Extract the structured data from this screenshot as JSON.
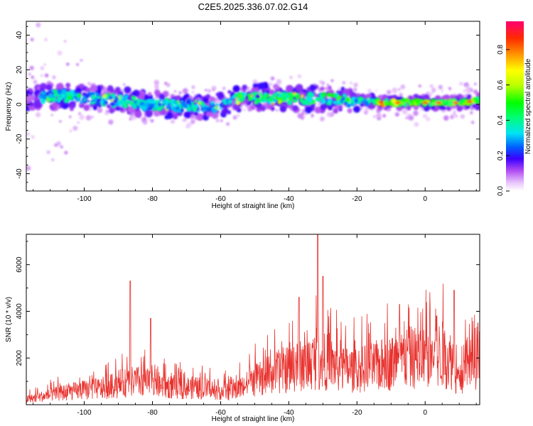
{
  "title": "C2E5.2025.336.07.02.G14",
  "chart_data": [
    {
      "type": "heatmap",
      "xlabel": "Height of straight line (km)",
      "ylabel": "Frequency (Hz)",
      "xlim": [
        -117,
        16
      ],
      "ylim": [
        -50,
        48
      ],
      "xticks": [
        -100,
        -80,
        -60,
        -40,
        -20,
        0
      ],
      "yticks": [
        -40,
        -20,
        0,
        20,
        40
      ],
      "colorbar": {
        "label": "Normalized spectral amplitude",
        "range": [
          0,
          0.96
        ],
        "ticks": [
          0.0,
          0.2,
          0.4,
          0.6,
          0.8
        ]
      },
      "ridge": {
        "description": "central frequency of the strongest amplitude band versus height",
        "x": [
          -117,
          -110,
          -100,
          -90,
          -80,
          -70,
          -60,
          -55,
          -50,
          -40,
          -30,
          -20,
          -10,
          0,
          10,
          16
        ],
        "y": [
          4,
          5,
          4,
          2,
          0,
          -1,
          -1,
          3,
          4,
          4,
          3,
          2,
          1,
          1,
          1,
          2
        ]
      }
    },
    {
      "type": "line",
      "xlabel": "Height of straight line (km)",
      "ylabel": "SNR (10 * v/v)",
      "xlim": [
        -117,
        16
      ],
      "ylim": [
        0,
        7300
      ],
      "xticks": [
        -100,
        -80,
        -60,
        -40,
        -20,
        0
      ],
      "yticks": [
        2000,
        4000,
        6000
      ],
      "series": [
        {
          "name": "SNR",
          "color": "#e8322e",
          "envelope_x": [
            -117,
            -105,
            -95,
            -85,
            -75,
            -65,
            -57,
            -50,
            -45,
            -40,
            -35,
            -32,
            -28,
            -25,
            -20,
            -15,
            -10,
            -5,
            0,
            5,
            8,
            10,
            12,
            16
          ],
          "envelope_y": [
            300,
            700,
            900,
            1300,
            1000,
            900,
            700,
            1300,
            1700,
            2000,
            2200,
            2500,
            2300,
            2000,
            1900,
            2100,
            2300,
            2600,
            2600,
            2800,
            2400,
            1200,
            2200,
            2600
          ],
          "peaks": [
            {
              "x": -86.5,
              "y": 5300
            },
            {
              "x": -80.5,
              "y": 3700
            },
            {
              "x": -31.5,
              "y": 7300
            },
            {
              "x": -30.0,
              "y": 5500
            },
            {
              "x": -37.0,
              "y": 4600
            },
            {
              "x": -7.5,
              "y": 4300
            },
            {
              "x": 8.5,
              "y": 4900
            },
            {
              "x": 15.5,
              "y": 3500
            }
          ]
        }
      ]
    }
  ]
}
